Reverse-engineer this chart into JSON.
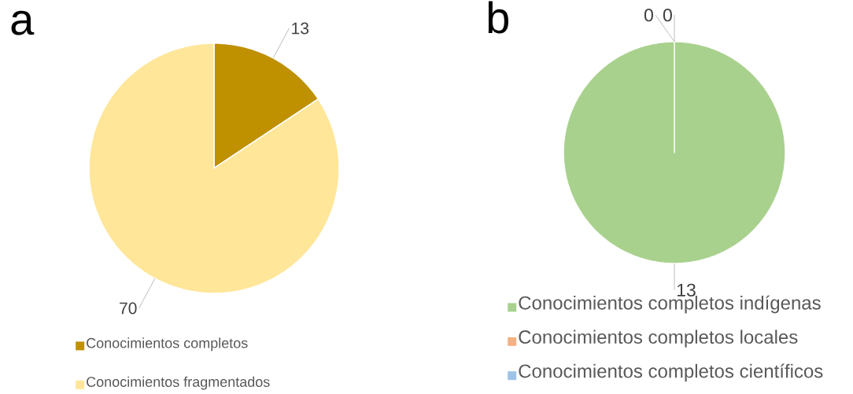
{
  "chart_data": [
    {
      "type": "pie",
      "title": "a",
      "categories": [
        "Conocimientos completos",
        "Conocimientos fragmentados"
      ],
      "values": [
        13,
        70
      ],
      "colors": [
        "#bf9000",
        "#ffe699"
      ],
      "data_labels": true,
      "legend": "bottom"
    },
    {
      "type": "pie",
      "title": "b",
      "categories": [
        "Conocimientos completos indígenas",
        "Conocimientos completos locales",
        "Conocimientos completos científicos"
      ],
      "values": [
        13,
        0,
        0
      ],
      "value_labels": [
        "13",
        "0",
        "0"
      ],
      "colors": [
        "#a9d18e",
        "#f4b183",
        "#9dc3e6"
      ],
      "legend": "bottom"
    }
  ]
}
